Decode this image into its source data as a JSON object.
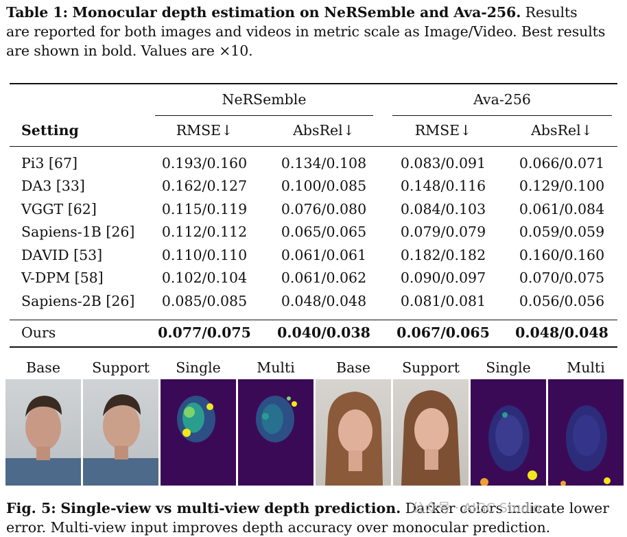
{
  "table_caption": {
    "label": "Table 1:",
    "title": "Monocular depth estimation on NeRSemble and Ava-256.",
    "line1_rest": "Results",
    "line2": "are reported for both images and videos in metric scale as Image/Video. Best results",
    "line3": "are shown in bold. Values are ×10."
  },
  "table": {
    "group_headers": [
      "NeRSemble",
      "Ava-256"
    ],
    "setting_header": "Setting",
    "metric_headers": [
      "RMSE↓",
      "AbsRel↓",
      "RMSE↓",
      "AbsRel↓"
    ],
    "rows": [
      {
        "setting": "Pi3 [67]",
        "values": [
          "0.193/0.160",
          "0.134/0.108",
          "0.083/0.091",
          "0.066/0.071"
        ]
      },
      {
        "setting": "DA3 [33]",
        "values": [
          "0.162/0.127",
          "0.100/0.085",
          "0.148/0.116",
          "0.129/0.100"
        ]
      },
      {
        "setting": "VGGT [62]",
        "values": [
          "0.115/0.119",
          "0.076/0.080",
          "0.084/0.103",
          "0.061/0.084"
        ]
      },
      {
        "setting": "Sapiens-1B [26]",
        "values": [
          "0.112/0.112",
          "0.065/0.065",
          "0.079/0.079",
          "0.059/0.059"
        ]
      },
      {
        "setting": "DAVID [53]",
        "values": [
          "0.110/0.110",
          "0.061/0.061",
          "0.182/0.182",
          "0.160/0.160"
        ]
      },
      {
        "setting": "V-DPM [58]",
        "values": [
          "0.102/0.104",
          "0.061/0.062",
          "0.090/0.097",
          "0.070/0.075"
        ]
      },
      {
        "setting": "Sapiens-2B [26]",
        "values": [
          "0.085/0.085",
          "0.048/0.048",
          "0.081/0.081",
          "0.056/0.056"
        ]
      }
    ],
    "ours": {
      "setting": "Ours",
      "values": [
        "0.077/0.075",
        "0.040/0.038",
        "0.067/0.065",
        "0.048/0.048"
      ]
    }
  },
  "figure": {
    "labels": [
      "Base",
      "Support",
      "Single",
      "Multi",
      "Base",
      "Support",
      "Single",
      "Multi"
    ],
    "colors": {
      "depth_bg": "#3b0a57",
      "depth_hi": "#f5e61c",
      "depth_mid": "#2a9d8f"
    }
  },
  "figure_caption": {
    "label": "Fig. 5:",
    "title": "Single-view vs multi-view depth prediction.",
    "line1_rest": "Darker colors indicate lower",
    "line2": "error. Multi-view input improves depth accuracy over monocular prediction.",
    "watermark": "公众号 · AIGC Studio"
  }
}
